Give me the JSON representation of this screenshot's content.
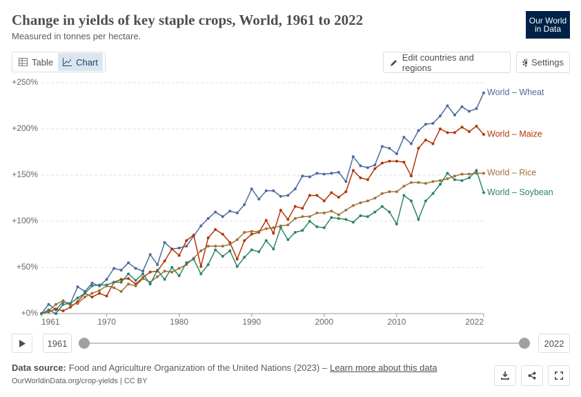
{
  "header": {
    "logo": [
      "Our World",
      "in Data"
    ]
  },
  "controls": {
    "table": "Table",
    "chart": "Chart",
    "edit": "Edit countries and regions",
    "settings": "Settings"
  },
  "chart_data": {
    "type": "line",
    "title": "Change in yields of key staple crops, World, 1961 to 2022",
    "subtitle": "Measured in tonnes per hectare.",
    "x": [
      1961,
      1962,
      1963,
      1964,
      1965,
      1966,
      1967,
      1968,
      1969,
      1970,
      1971,
      1972,
      1973,
      1974,
      1975,
      1976,
      1977,
      1978,
      1979,
      1980,
      1981,
      1982,
      1983,
      1984,
      1985,
      1986,
      1987,
      1988,
      1989,
      1990,
      1991,
      1992,
      1993,
      1994,
      1995,
      1996,
      1997,
      1998,
      1999,
      2000,
      2001,
      2002,
      2003,
      2004,
      2005,
      2006,
      2007,
      2008,
      2009,
      2010,
      2011,
      2012,
      2013,
      2014,
      2015,
      2016,
      2017,
      2018,
      2019,
      2020,
      2021,
      2022
    ],
    "xlim": [
      1961,
      2022
    ],
    "xticks": [
      1961,
      1970,
      1980,
      1990,
      2000,
      2010,
      2022
    ],
    "ylim": [
      0,
      250
    ],
    "yticks": [
      {
        "value": 0,
        "label": "+0%"
      },
      {
        "value": 50,
        "label": "+50%"
      },
      {
        "value": 100,
        "label": "+100%"
      },
      {
        "value": 150,
        "label": "+150%"
      },
      {
        "value": 200,
        "label": "+200%"
      },
      {
        "value": 250,
        "label": "+250%"
      }
    ],
    "grid": true,
    "series": [
      {
        "name": "World – Wheat",
        "color": "#4c6a9c",
        "values": [
          0,
          10,
          4,
          13,
          11,
          29,
          24,
          33,
          30,
          37,
          49,
          47,
          55,
          49,
          46,
          64,
          53,
          77,
          70,
          71,
          73,
          84,
          95,
          103,
          110,
          105,
          111,
          109,
          118,
          135,
          124,
          133,
          133,
          127,
          128,
          135,
          149,
          148,
          152,
          151,
          152,
          153,
          143,
          170,
          160,
          158,
          161,
          181,
          179,
          173,
          191,
          184,
          198,
          205,
          206,
          214,
          225,
          215,
          224,
          219,
          222,
          239
        ]
      },
      {
        "name": "World – Maize",
        "color": "#b13507",
        "values": [
          0,
          2,
          5,
          3,
          7,
          13,
          22,
          18,
          22,
          19,
          34,
          37,
          38,
          32,
          39,
          45,
          46,
          57,
          70,
          63,
          79,
          85,
          51,
          82,
          91,
          86,
          77,
          59,
          79,
          86,
          88,
          101,
          87,
          112,
          102,
          116,
          114,
          128,
          128,
          122,
          131,
          126,
          132,
          155,
          147,
          145,
          157,
          163,
          165,
          165,
          164,
          149,
          179,
          188,
          184,
          200,
          196,
          196,
          202,
          197,
          203,
          194
        ]
      },
      {
        "name": "World – Rice",
        "color": "#a2703c",
        "values": [
          0,
          3,
          10,
          14,
          9,
          11,
          18,
          22,
          25,
          30,
          28,
          24,
          32,
          30,
          38,
          34,
          40,
          46,
          45,
          49,
          53,
          60,
          68,
          73,
          73,
          73,
          75,
          80,
          88,
          89,
          89,
          92,
          93,
          95,
          96,
          103,
          105,
          105,
          109,
          109,
          111,
          107,
          112,
          117,
          120,
          122,
          125,
          130,
          132,
          132,
          138,
          142,
          142,
          141,
          143,
          144,
          146,
          149,
          151,
          151,
          152,
          152
        ]
      },
      {
        "name": "World – Soybean",
        "color": "#2c8465",
        "values": [
          0,
          4,
          0,
          10,
          11,
          17,
          22,
          30,
          31,
          31,
          34,
          34,
          43,
          36,
          43,
          32,
          47,
          37,
          50,
          41,
          55,
          59,
          43,
          53,
          69,
          62,
          68,
          51,
          61,
          69,
          67,
          79,
          70,
          93,
          80,
          88,
          90,
          100,
          94,
          93,
          104,
          103,
          102,
          99,
          106,
          105,
          110,
          116,
          110,
          97,
          128,
          122,
          102,
          122,
          130,
          140,
          152,
          145,
          144,
          147,
          155,
          131
        ]
      }
    ]
  },
  "timeline": {
    "start": "1961",
    "end": "2022"
  },
  "footer": {
    "source_label": "Data source:",
    "source": "Food and Agriculture Organization of the United Nations (2023) –",
    "link": "Learn more about this data",
    "license": "OurWorldinData.org/crop-yields | CC BY"
  }
}
